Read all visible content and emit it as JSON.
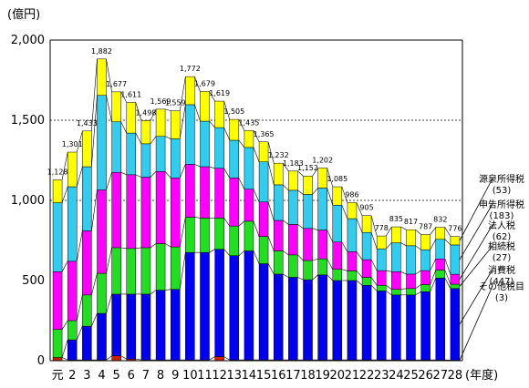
{
  "chart_data": {
    "type": "bar",
    "stacked": true,
    "y_unit": "(億円)",
    "x_unit": "(年度)",
    "ylim": [
      0,
      2000
    ],
    "y_ticks": [
      "0",
      "500",
      "1,000",
      "1,500",
      "2,000"
    ],
    "gridlines": "dashed at 1,000 and 1,500",
    "categories": [
      "元",
      "2",
      "3",
      "4",
      "5",
      "6",
      "7",
      "8",
      "9",
      "10",
      "11",
      "12",
      "13",
      "14",
      "15",
      "16",
      "17",
      "18",
      "19",
      "20",
      "21",
      "22",
      "23",
      "24",
      "25",
      "26",
      "27",
      "28"
    ],
    "x_tick_labels": [
      "元",
      "2",
      "3",
      "4",
      "5",
      "6",
      "7",
      "8",
      "9",
      "10",
      "11",
      "12",
      "13",
      "14",
      "15",
      "16",
      "17",
      "18",
      "19",
      "20",
      "21",
      "22",
      "23",
      "24",
      "25",
      "26",
      "27",
      "28"
    ],
    "totals": [
      1128,
      1301,
      1433,
      1882,
      1677,
      1611,
      1498,
      1569,
      1559,
      1772,
      1679,
      1619,
      1505,
      1435,
      1365,
      1232,
      1183,
      1152,
      1202,
      1085,
      986,
      905,
      778,
      835,
      817,
      787,
      832,
      776
    ],
    "total_labels": [
      "1,128",
      "1,301",
      "1,433",
      "1,882",
      "1,677",
      "1,611",
      "1,498",
      "1,569",
      "1,559",
      "1,772",
      "1,679",
      "1,619",
      "1,505",
      "1,435",
      "1,365",
      "1,232",
      "1,183",
      "1,152",
      "1,202",
      "1,085",
      "986",
      "905",
      "778",
      "835",
      "817",
      "787",
      "832",
      "776"
    ],
    "series": [
      {
        "name": "その他税目",
        "color": "#cc2200",
        "values": [
          20,
          5,
          5,
          5,
          30,
          10,
          5,
          5,
          5,
          5,
          5,
          25,
          5,
          5,
          5,
          5,
          5,
          5,
          5,
          5,
          5,
          5,
          5,
          5,
          5,
          5,
          5,
          3
        ]
      },
      {
        "name": "消費税",
        "color": "#0000ee",
        "values": [
          0,
          125,
          210,
          290,
          385,
          405,
          410,
          435,
          440,
          670,
          670,
          670,
          650,
          680,
          600,
          535,
          515,
          500,
          530,
          495,
          495,
          465,
          430,
          405,
          405,
          425,
          510,
          447
        ]
      },
      {
        "name": "相続税",
        "color": "#22dd22",
        "values": [
          175,
          120,
          195,
          250,
          290,
          285,
          290,
          290,
          265,
          220,
          215,
          195,
          185,
          185,
          170,
          145,
          140,
          120,
          100,
          70,
          60,
          50,
          35,
          35,
          40,
          45,
          50,
          27
        ]
      },
      {
        "name": "法人税",
        "color": "#ff00ff",
        "values": [
          360,
          370,
          400,
          520,
          470,
          460,
          440,
          450,
          430,
          330,
          320,
          310,
          300,
          200,
          215,
          190,
          190,
          200,
          180,
          170,
          120,
          110,
          92,
          110,
          90,
          87,
          70,
          62
        ]
      },
      {
        "name": "申告所得税",
        "color": "#33ccee",
        "values": [
          430,
          465,
          400,
          590,
          315,
          260,
          208,
          219,
          244,
          372,
          284,
          254,
          235,
          260,
          250,
          222,
          213,
          212,
          262,
          230,
          206,
          170,
          136,
          180,
          177,
          130,
          122,
          183
        ]
      },
      {
        "name": "源泉所得税",
        "color": "#ffff00",
        "values": [
          143,
          216,
          223,
          227,
          187,
          191,
          145,
          170,
          175,
          175,
          185,
          165,
          130,
          105,
          125,
          135,
          120,
          115,
          125,
          115,
          100,
          105,
          80,
          100,
          100,
          95,
          75,
          53
        ]
      }
    ],
    "legend_labels": [
      {
        "name": "源泉所得税",
        "value": "(53)"
      },
      {
        "name": "申告所得税",
        "value": "(183)"
      },
      {
        "name": "法人税",
        "value": "(62)"
      },
      {
        "name": "相続税",
        "value": "(27)"
      },
      {
        "name": "消費税",
        "value": "(447)"
      },
      {
        "name": "その他税目",
        "value": "(3)"
      }
    ]
  }
}
